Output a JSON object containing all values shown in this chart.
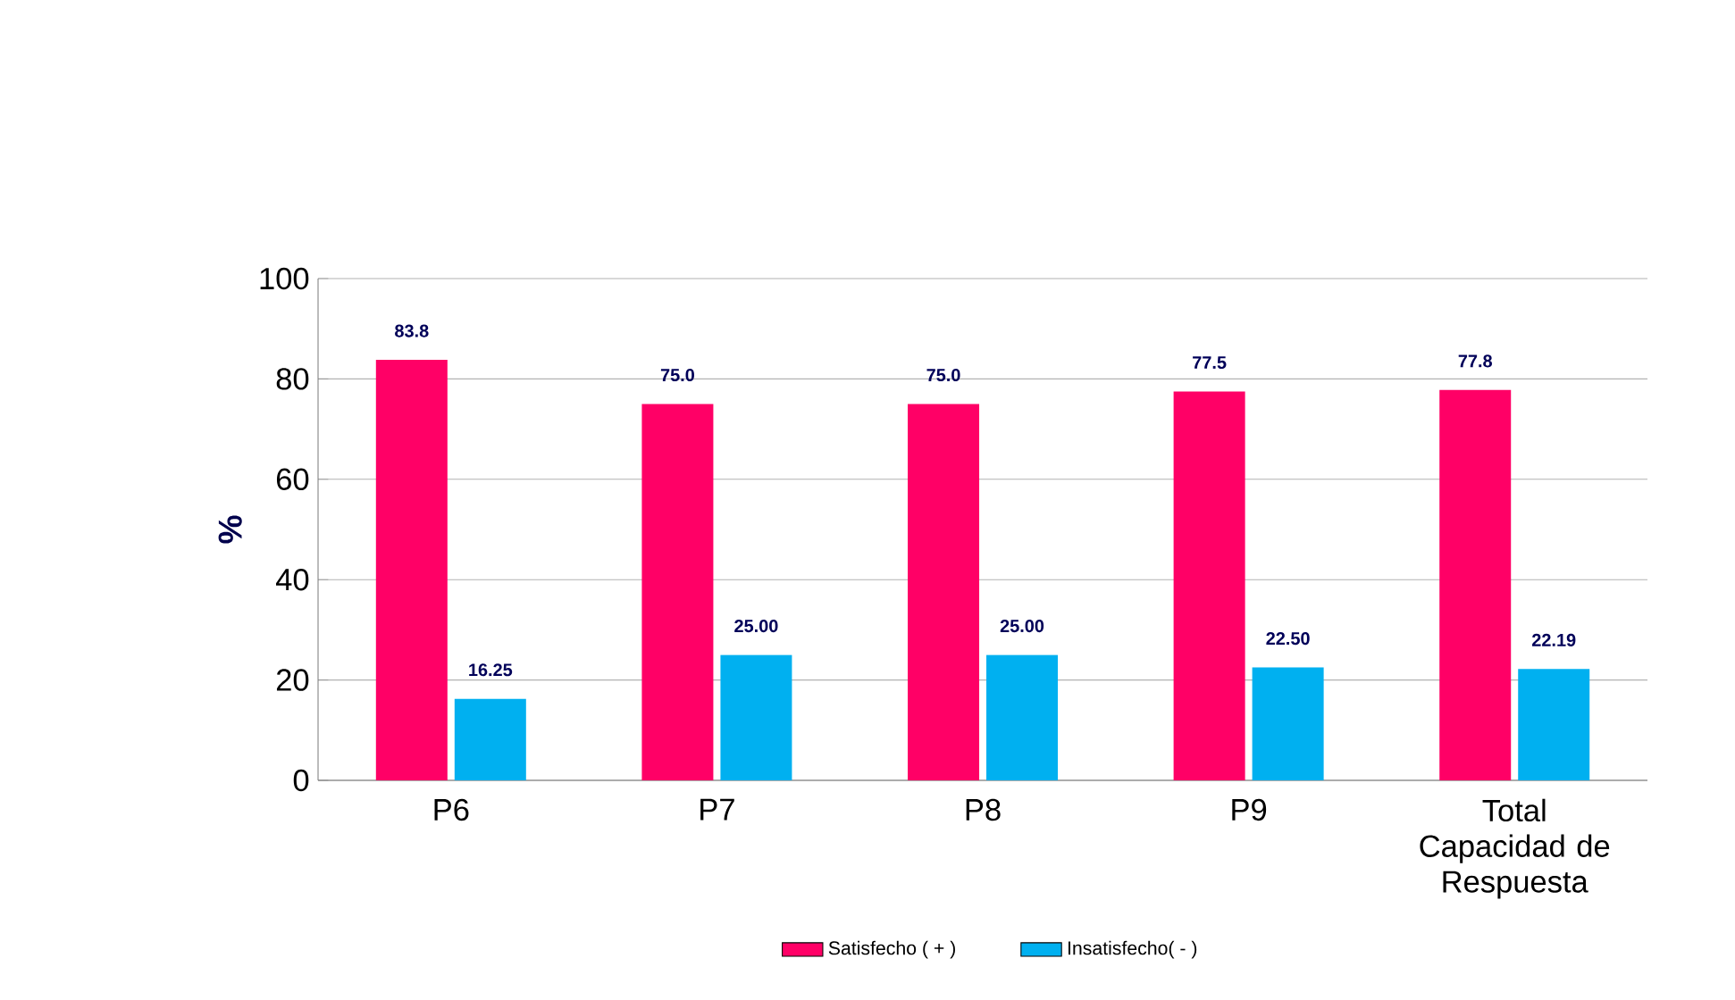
{
  "chart_data": {
    "type": "bar",
    "ylabel": "%",
    "categories": [
      "P6",
      "P7",
      "P8",
      "P9",
      "Total Capacidad de Respuesta"
    ],
    "series": [
      {
        "name": "Satisfecho ( + )",
        "color": "#ff0066",
        "values": [
          83.8,
          75.0,
          75.0,
          77.5,
          77.8
        ],
        "value_labels": [
          "83.8",
          "75.0",
          "75.0",
          "77.5",
          "77.8"
        ]
      },
      {
        "name": "Insatisfecho( - )",
        "color": "#00b0f0",
        "values": [
          16.25,
          25.0,
          25.0,
          22.5,
          22.19
        ],
        "value_labels": [
          "16.25",
          "25.00",
          "25.00",
          "22.50",
          "22.19"
        ]
      }
    ],
    "ylim": [
      0,
      100
    ],
    "yticks": [
      0,
      20,
      40,
      60,
      80,
      100
    ],
    "grid": "y",
    "legend": "bottom"
  }
}
